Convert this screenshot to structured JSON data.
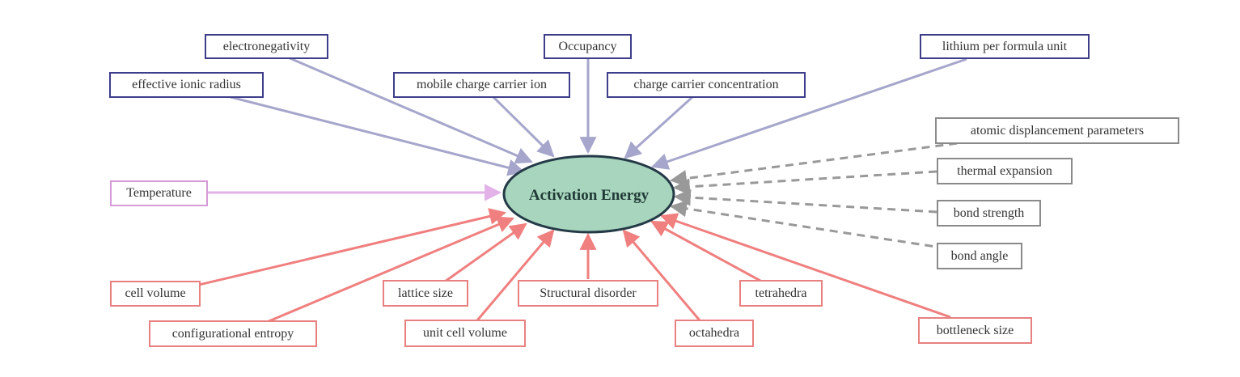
{
  "center": {
    "label": "Activation Energy",
    "fill": "#a8d5bd",
    "stroke": "#243a47"
  },
  "colors": {
    "blue": "#a6a6cc",
    "pink": "#e2b2e8",
    "red": "#f07f7f",
    "gray": "#999999"
  },
  "nodes": {
    "electronegativity": "electronegativity",
    "occupancy": "Occupancy",
    "lithium_per_formula_unit": "lithium per formula unit",
    "effective_ionic_radius": "effective ionic radius",
    "mobile_charge_carrier_ion": "mobile charge carrier ion",
    "charge_carrier_concentration": "charge carrier concentration",
    "temperature": "Temperature",
    "atomic_displacement_parameters": "atomic displancement parameters",
    "thermal_expansion": "thermal expansion",
    "bond_strength": "bond strength",
    "bond_angle": "bond angle",
    "cell_volume": "cell volume",
    "configurational_entropy": "configurational entropy",
    "lattice_size": "lattice size",
    "unit_cell_volume": "unit cell volume",
    "structural_disorder": "Structural disorder",
    "octahedra": "octahedra",
    "tetrahedra": "tetrahedra",
    "bottleneck_size": "bottleneck size"
  }
}
